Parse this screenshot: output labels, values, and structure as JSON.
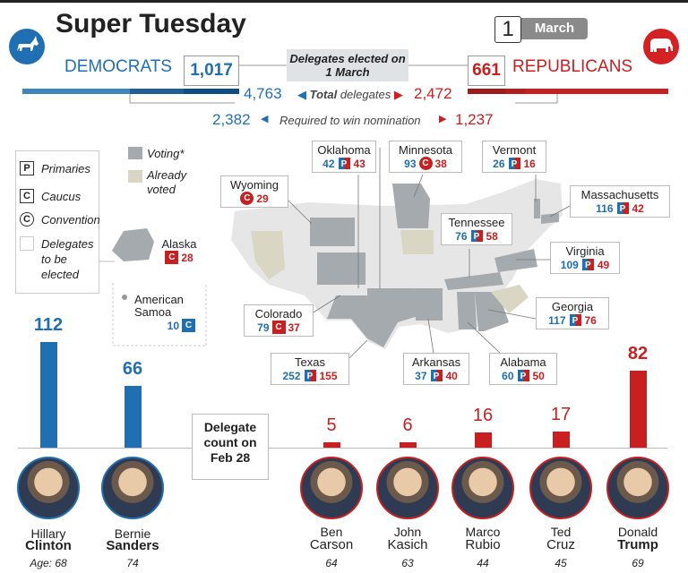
{
  "header": {
    "title": "Super Tuesday",
    "date_num": "1",
    "date_month": "March"
  },
  "colors": {
    "dem": "#1f6fb2",
    "rep": "#c82020",
    "voting": "#a5aaae",
    "already_voted": "#d9d7c3"
  },
  "parties": {
    "dem": {
      "name": "DEMOCRATS",
      "elected": "1,017",
      "total": "4,763",
      "required": "2,382",
      "icon": "donkey-icon"
    },
    "rep": {
      "name": "REPUBLICANS",
      "elected": "661",
      "total": "2,472",
      "required": "1,237",
      "icon": "elephant-icon"
    }
  },
  "labels": {
    "banner": "Delegates elected on 1 March",
    "total": "Total",
    "total_suffix": " delegates",
    "required": "Required to win nomination",
    "delegate_count": "Delegate count on Feb 28"
  },
  "legend": {
    "primaries": "Primaries",
    "caucus": "Caucus",
    "convention": "Convention",
    "delegates": "Delegates to be elected",
    "voting": "Voting*",
    "already_voted": "Already voted",
    "P": "P",
    "C": "C"
  },
  "states": [
    {
      "id": "oklahoma",
      "name": "Oklahoma",
      "dem": "42",
      "type": "P",
      "rep": "43"
    },
    {
      "id": "minnesota",
      "name": "Minnesota",
      "dem": "93",
      "type": "C",
      "rep": "38"
    },
    {
      "id": "vermont",
      "name": "Vermont",
      "dem": "26",
      "type": "P",
      "rep": "16"
    },
    {
      "id": "wyoming",
      "name": "Wyoming",
      "dem": "",
      "type": "C",
      "rep": "29"
    },
    {
      "id": "massachusetts",
      "name": "Massachusetts",
      "dem": "116",
      "type": "P",
      "rep": "42"
    },
    {
      "id": "tennessee",
      "name": "Tennessee",
      "dem": "76",
      "type": "P",
      "rep": "58"
    },
    {
      "id": "alaska",
      "name": "Alaska",
      "dem": "",
      "type": "C",
      "rep": "28"
    },
    {
      "id": "virginia",
      "name": "Virginia",
      "dem": "109",
      "type": "P",
      "rep": "49"
    },
    {
      "id": "samoa",
      "name": "American Samoa",
      "dem": "10",
      "type": "C",
      "rep": ""
    },
    {
      "id": "colorado",
      "name": "Colorado",
      "dem": "79",
      "type": "C",
      "rep": "37"
    },
    {
      "id": "georgia",
      "name": "Georgia",
      "dem": "117",
      "type": "P",
      "rep": "76"
    },
    {
      "id": "texas",
      "name": "Texas",
      "dem": "252",
      "type": "P",
      "rep": "155"
    },
    {
      "id": "arkansas",
      "name": "Arkansas",
      "dem": "37",
      "type": "P",
      "rep": "40"
    },
    {
      "id": "alabama",
      "name": "Alabama",
      "dem": "60",
      "type": "P",
      "rep": "50"
    }
  ],
  "candidates": [
    {
      "first": "Hillary",
      "last": "Clinton",
      "age_label": "Age: 68",
      "count": 112,
      "party": "dem"
    },
    {
      "first": "Bernie",
      "last": "Sanders",
      "age_label": "74",
      "count": 66,
      "party": "dem"
    },
    {
      "first": "Ben",
      "last": "Carson",
      "age_label": "64",
      "count": 5,
      "party": "rep"
    },
    {
      "first": "John",
      "last": "Kasich",
      "age_label": "63",
      "count": 6,
      "party": "rep"
    },
    {
      "first": "Marco",
      "last": "Rubio",
      "age_label": "44",
      "count": 16,
      "party": "rep"
    },
    {
      "first": "Ted",
      "last": "Cruz",
      "age_label": "45",
      "count": 17,
      "party": "rep"
    },
    {
      "first": "Donald",
      "last": "Trump",
      "age_label": "69",
      "count": 82,
      "party": "rep"
    }
  ]
}
